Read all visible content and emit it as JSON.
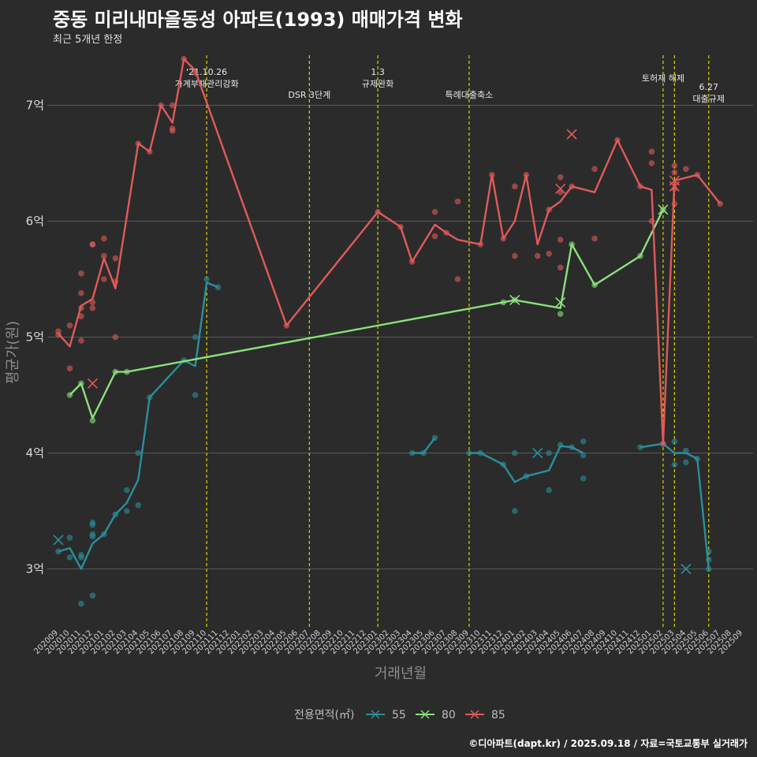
{
  "colors": {
    "background": "#2b2b2b",
    "grid": "#6a6a6a",
    "vline": "#d9d000",
    "s55": "#2a8f99",
    "s80": "#8be07d",
    "s85": "#e05a5a"
  },
  "chart_data": {
    "type": "line",
    "title": "중동 미리내마을동성 아파트(1993) 매매가격 변화",
    "subtitle": "최근 5개년 한정",
    "xlabel": "거래년월",
    "ylabel": "평균가(원)",
    "ylim": [
      2.5,
      7.5
    ],
    "yticks": [
      3,
      4,
      5,
      6,
      7
    ],
    "ytick_labels": [
      "3억",
      "4억",
      "5억",
      "6억",
      "7억"
    ],
    "categories": [
      "202009",
      "202010",
      "202011",
      "202012",
      "202101",
      "202102",
      "202103",
      "202104",
      "202105",
      "202106",
      "202107",
      "202108",
      "202109",
      "202110",
      "202111",
      "202112",
      "202201",
      "202202",
      "202203",
      "202204",
      "202205",
      "202206",
      "202207",
      "202208",
      "202209",
      "202210",
      "202211",
      "202212",
      "202301",
      "202302",
      "202303",
      "202304",
      "202305",
      "202306",
      "202307",
      "202308",
      "202309",
      "202310",
      "202311",
      "202312",
      "202401",
      "202402",
      "202403",
      "202404",
      "202405",
      "202406",
      "202407",
      "202408",
      "202409",
      "202410",
      "202411",
      "202412",
      "202501",
      "202502",
      "202503",
      "202504",
      "202505",
      "202506",
      "202507",
      "202508",
      "202509"
    ],
    "x_labels": [
      "202009",
      "202010",
      "202011",
      "202012",
      "202101",
      "202102",
      "202103",
      "202104",
      "202105",
      "202106",
      "202107",
      "202108",
      "202109",
      "202110",
      "202111",
      "202112",
      "202201",
      "202202",
      "202203",
      "202204",
      "202205",
      "202206",
      "202207",
      "202208",
      "202209",
      "202210",
      "202211",
      "202212",
      "202301",
      "202302",
      "202303",
      "202304",
      "202305",
      "202306",
      "202307",
      "202308",
      "202309",
      "202310",
      "202311",
      "202312",
      "202401",
      "202402",
      "202403",
      "202404",
      "202405",
      "202406",
      "202407",
      "202408",
      "202409",
      "202410",
      "202411",
      "202412",
      "202501",
      "202502",
      "202503",
      "202504",
      "202505",
      "202506",
      "202507",
      "202508",
      "202509"
    ],
    "legend": {
      "title": "전용면적(㎡)",
      "entries": [
        "55",
        "80",
        "85"
      ],
      "position": "bottom"
    },
    "events": [
      {
        "x": 13,
        "lines": [
          "'21.10.26",
          "가계부채관리강화"
        ],
        "row": "top"
      },
      {
        "x": 22,
        "lines": [
          "DSR 3단계"
        ],
        "row": "mid"
      },
      {
        "x": 28,
        "lines": [
          "1.3",
          "규제완화"
        ],
        "row": "top"
      },
      {
        "x": 36,
        "lines": [
          "특례대출축소"
        ],
        "row": "mid"
      },
      {
        "x": 53,
        "lines": [
          "토허제 해제"
        ],
        "row": "top2"
      },
      {
        "x": 54,
        "lines": [],
        "row": "none"
      },
      {
        "x": 57,
        "lines": [
          "6.27",
          "대출규제"
        ],
        "row": "low"
      }
    ],
    "series": [
      {
        "name": "55",
        "line": [
          [
            [
              0,
              3.15
            ],
            [
              1,
              3.18
            ],
            [
              2,
              3.0
            ],
            [
              3,
              3.22
            ],
            [
              4,
              3.3
            ],
            [
              5,
              3.47
            ],
            [
              6,
              3.57
            ],
            [
              7,
              3.77
            ],
            [
              8,
              4.48
            ],
            [
              11,
              4.8
            ],
            [
              12,
              4.75
            ],
            [
              13,
              5.47
            ],
            [
              14,
              5.43
            ]
          ],
          [
            [
              31,
              4.0
            ],
            [
              32,
              4.0
            ],
            [
              33,
              4.13
            ]
          ],
          [
            [
              36,
              4.0
            ],
            [
              37,
              4.0
            ],
            [
              39,
              3.9
            ],
            [
              40,
              3.75
            ],
            [
              41,
              3.8
            ],
            [
              43,
              3.85
            ],
            [
              44,
              4.06
            ],
            [
              45,
              4.05
            ],
            [
              46,
              4.0
            ]
          ],
          [
            [
              51,
              4.05
            ],
            [
              53,
              4.08
            ],
            [
              54,
              4.0
            ],
            [
              55,
              4.0
            ],
            [
              56,
              3.95
            ],
            [
              57,
              3.0
            ]
          ]
        ],
        "points": [
          [
            0,
            3.15
          ],
          [
            1,
            3.27
          ],
          [
            1,
            3.1
          ],
          [
            2,
            3.1
          ],
          [
            2,
            3.12
          ],
          [
            2,
            2.7
          ],
          [
            3,
            3.4
          ],
          [
            3,
            3.38
          ],
          [
            3,
            3.3
          ],
          [
            3,
            3.28
          ],
          [
            3,
            2.77
          ],
          [
            4,
            3.3
          ],
          [
            5,
            3.47
          ],
          [
            6,
            3.68
          ],
          [
            6,
            3.5
          ],
          [
            7,
            3.55
          ],
          [
            7,
            4.0
          ],
          [
            8,
            4.48
          ],
          [
            11,
            4.8
          ],
          [
            12,
            4.5
          ],
          [
            12,
            5.0
          ],
          [
            13,
            5.5
          ],
          [
            14,
            5.43
          ],
          [
            31,
            4.0
          ],
          [
            32,
            4.0
          ],
          [
            33,
            4.13
          ],
          [
            36,
            4.0
          ],
          [
            37,
            4.0
          ],
          [
            39,
            3.9
          ],
          [
            40,
            4.0
          ],
          [
            40,
            3.5
          ],
          [
            41,
            3.8
          ],
          [
            43,
            3.68
          ],
          [
            43,
            4.0
          ],
          [
            44,
            4.07
          ],
          [
            45,
            4.05
          ],
          [
            46,
            4.1
          ],
          [
            46,
            3.98
          ],
          [
            46,
            3.78
          ],
          [
            51,
            4.05
          ],
          [
            53,
            4.08
          ],
          [
            54,
            3.9
          ],
          [
            54,
            4.1
          ],
          [
            55,
            3.92
          ],
          [
            55,
            4.02
          ],
          [
            56,
            3.95
          ],
          [
            57,
            3.0
          ],
          [
            57,
            3.08
          ],
          [
            57,
            3.15
          ]
        ],
        "crosses": [
          [
            0,
            3.25
          ],
          [
            42,
            4.0
          ],
          [
            55,
            3.0
          ]
        ]
      },
      {
        "name": "80",
        "line": [
          [
            [
              1,
              4.5
            ],
            [
              2,
              4.6
            ],
            [
              3,
              4.3
            ],
            [
              5,
              4.7
            ],
            [
              6,
              4.7
            ],
            [
              39,
              5.3
            ],
            [
              40,
              5.32
            ],
            [
              44,
              5.25
            ],
            [
              45,
              5.8
            ],
            [
              47,
              5.45
            ],
            [
              51,
              5.7
            ],
            [
              53,
              6.1
            ]
          ]
        ],
        "points": [
          [
            1,
            4.5
          ],
          [
            2,
            4.6
          ],
          [
            3,
            4.28
          ],
          [
            5,
            4.7
          ],
          [
            6,
            4.7
          ],
          [
            39,
            5.3
          ],
          [
            40,
            5.32
          ],
          [
            44,
            5.2
          ],
          [
            45,
            5.8
          ],
          [
            47,
            5.45
          ],
          [
            51,
            5.7
          ],
          [
            53,
            6.1
          ]
        ],
        "crosses": [
          [
            40,
            5.32
          ],
          [
            44,
            5.3
          ],
          [
            53,
            6.1
          ]
        ]
      },
      {
        "name": "85",
        "line": [
          [
            [
              0,
              5.03
            ],
            [
              1,
              4.92
            ],
            [
              2,
              5.27
            ],
            [
              3,
              5.33
            ],
            [
              4,
              5.68
            ],
            [
              5,
              5.42
            ],
            [
              7,
              6.67
            ],
            [
              8,
              6.6
            ],
            [
              9,
              7.0
            ],
            [
              10,
              6.85
            ],
            [
              11,
              7.4
            ],
            [
              12,
              7.3
            ],
            [
              20,
              5.1
            ],
            [
              28,
              6.08
            ],
            [
              30,
              5.95
            ],
            [
              31,
              5.65
            ],
            [
              33,
              5.97
            ],
            [
              34,
              5.9
            ],
            [
              35,
              5.84
            ],
            [
              37,
              5.8
            ],
            [
              38,
              6.4
            ],
            [
              39,
              5.85
            ],
            [
              40,
              6.0
            ],
            [
              41,
              6.4
            ],
            [
              42,
              5.8
            ],
            [
              43,
              6.1
            ],
            [
              44,
              6.17
            ],
            [
              45,
              6.3
            ],
            [
              47,
              6.25
            ],
            [
              49,
              6.7
            ],
            [
              51,
              6.3
            ],
            [
              52,
              6.27
            ],
            [
              53,
              4.08
            ],
            [
              54,
              6.35
            ],
            [
              56,
              6.4
            ],
            [
              58,
              6.15
            ]
          ]
        ],
        "points": [
          [
            0,
            5.05
          ],
          [
            0,
            5.02
          ],
          [
            1,
            5.1
          ],
          [
            1,
            4.73
          ],
          [
            2,
            5.55
          ],
          [
            2,
            5.38
          ],
          [
            2,
            5.25
          ],
          [
            2,
            5.18
          ],
          [
            2,
            4.97
          ],
          [
            3,
            5.8
          ],
          [
            3,
            5.8
          ],
          [
            3,
            5.3
          ],
          [
            3,
            5.25
          ],
          [
            4,
            5.85
          ],
          [
            4,
            5.7
          ],
          [
            4,
            5.5
          ],
          [
            5,
            5.68
          ],
          [
            5,
            5.48
          ],
          [
            5,
            5.0
          ],
          [
            7,
            6.67
          ],
          [
            8,
            6.6
          ],
          [
            9,
            7.0
          ],
          [
            10,
            6.8
          ],
          [
            10,
            6.78
          ],
          [
            10,
            7.0
          ],
          [
            11,
            7.4
          ],
          [
            12,
            7.28
          ],
          [
            20,
            5.1
          ],
          [
            28,
            6.08
          ],
          [
            30,
            5.95
          ],
          [
            31,
            5.65
          ],
          [
            33,
            5.87
          ],
          [
            33,
            6.08
          ],
          [
            34,
            5.9
          ],
          [
            35,
            5.5
          ],
          [
            35,
            6.17
          ],
          [
            37,
            5.8
          ],
          [
            38,
            6.4
          ],
          [
            39,
            5.85
          ],
          [
            40,
            6.3
          ],
          [
            40,
            5.7
          ],
          [
            41,
            6.4
          ],
          [
            42,
            5.7
          ],
          [
            43,
            5.72
          ],
          [
            43,
            6.1
          ],
          [
            44,
            6.38
          ],
          [
            44,
            6.25
          ],
          [
            44,
            5.6
          ],
          [
            44,
            5.84
          ],
          [
            45,
            6.3
          ],
          [
            47,
            6.45
          ],
          [
            47,
            5.85
          ],
          [
            49,
            6.7
          ],
          [
            51,
            6.3
          ],
          [
            52,
            6.6
          ],
          [
            52,
            6.5
          ],
          [
            52,
            6.0
          ],
          [
            53,
            4.08
          ],
          [
            54,
            6.48
          ],
          [
            54,
            6.42
          ],
          [
            54,
            6.28
          ],
          [
            54,
            6.15
          ],
          [
            55,
            6.45
          ],
          [
            56,
            6.4
          ],
          [
            58,
            6.15
          ]
        ],
        "crosses": [
          [
            3,
            4.6
          ],
          [
            44,
            6.28
          ],
          [
            45,
            6.75
          ],
          [
            54,
            6.3
          ],
          [
            54,
            6.35
          ]
        ]
      }
    ],
    "footer": "©디아파트(dapt.kr) / 2025.09.18 / 자료=국토교통부 실거래가"
  }
}
